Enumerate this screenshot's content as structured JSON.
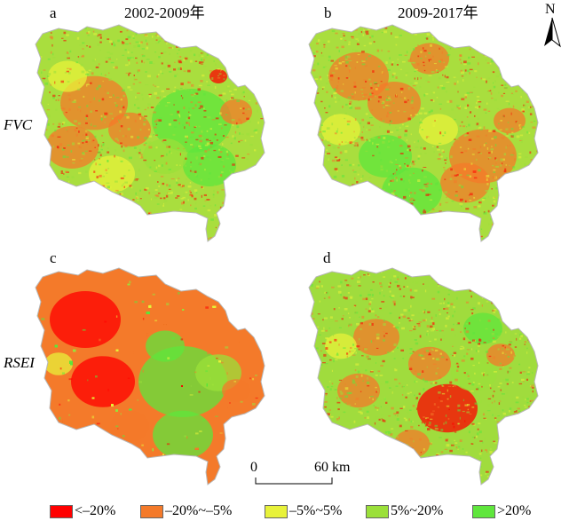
{
  "panels": [
    {
      "id": "a",
      "letter": "a",
      "title": "2002-2009年"
    },
    {
      "id": "b",
      "letter": "b",
      "title": "2009-2017年"
    },
    {
      "id": "c",
      "letter": "c",
      "title": ""
    },
    {
      "id": "d",
      "letter": "d",
      "title": ""
    }
  ],
  "row_labels": {
    "top": "FVC",
    "bottom": "RSEI"
  },
  "north_arrow": {
    "label": "N"
  },
  "scale_bar": {
    "zero": "0",
    "end": "60 km"
  },
  "legend": [
    {
      "label": "<–20%",
      "color": "#ff0000"
    },
    {
      "label": "–20%~–5%",
      "color": "#f47a2a"
    },
    {
      "label": "–5%~5%",
      "color": "#e8f23a"
    },
    {
      "label": "5%~20%",
      "color": "#9be03a"
    },
    {
      "label": ">20%",
      "color": "#5fe63c"
    }
  ]
}
